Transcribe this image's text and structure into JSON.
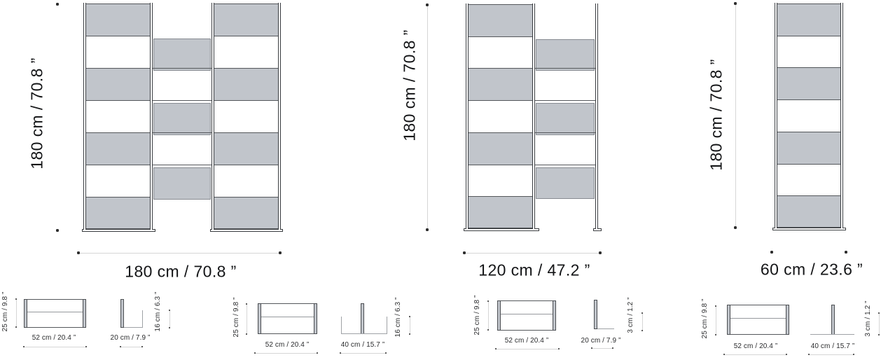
{
  "colors": {
    "panel_gray": "#c1c5cb",
    "line_dark": "#54575b",
    "post_line": "#3b3e42",
    "checker_border": "#878b91",
    "foot_border": "#3a3d40",
    "dim_dot": "#2c2c2c",
    "dim_line": "#d6d6d6",
    "wall_line": "#9fa2a6",
    "text": "#141517"
  },
  "units": [
    {
      "name": "divider-180",
      "rows": 7,
      "columns": 3,
      "height_label": "180 cm / 70.8 ”",
      "width_label": "180 cm / 70.8 ”"
    },
    {
      "name": "divider-120",
      "rows": 7,
      "columns": 2,
      "height_label": "180 cm / 70.8 ”",
      "width_label": "120 cm / 47.2 ”"
    },
    {
      "name": "divider-60",
      "rows": 7,
      "columns": 1,
      "height_label": "180 cm / 70.8 ”",
      "width_label": "60 cm / 23.6 ”"
    }
  ],
  "details": [
    {
      "panel_width": "52 cm / 20.4 ”",
      "panel_depth": "25 cm / 9.8 ”",
      "bracket_width": "20 cm / 7.9 ”",
      "bracket_height": "16 cm / 6.3 ”"
    },
    {
      "panel_width": "52 cm / 20.4 ”",
      "panel_depth": "25 cm / 9.8 ”",
      "bracket_width": "40 cm / 15.7 ”",
      "bracket_height": "16 cm / 6.3 ”"
    },
    {
      "panel_width": "52 cm / 20.4 ”",
      "panel_depth": "25 cm / 9.8 ”",
      "bracket_width": "20 cm / 7.9 ”",
      "bracket_height": "3 cm / 1.2 ”"
    },
    {
      "panel_width": "52 cm / 20.4 ”",
      "panel_depth": "25 cm / 9.8 ”",
      "bracket_width": "40 cm / 15.7 ”",
      "bracket_height": "3 cm / 1.2 ”"
    }
  ]
}
